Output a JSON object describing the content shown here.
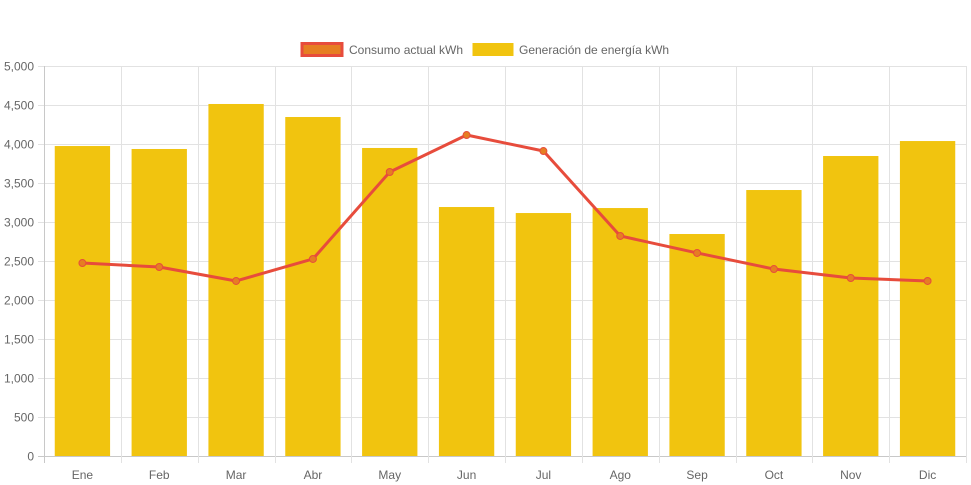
{
  "chart_data": {
    "type": "bar",
    "title": "",
    "xlabel": "",
    "ylabel": "",
    "categories": [
      "Ene",
      "Feb",
      "Mar",
      "Abr",
      "May",
      "Jun",
      "Jul",
      "Ago",
      "Sep",
      "Oct",
      "Nov",
      "Dic"
    ],
    "ylim": [
      0,
      5000
    ],
    "yticks": [
      0,
      500,
      1000,
      1500,
      2000,
      2500,
      3000,
      3500,
      4000,
      4500,
      5000
    ],
    "ytick_labels": [
      "0",
      "500",
      "1,000",
      "1,500",
      "2,000",
      "2,500",
      "3,000",
      "3,500",
      "4,000",
      "4,500",
      "5,000"
    ],
    "grid": true,
    "legend_position": "top-center",
    "series": [
      {
        "name": "Consumo actual kWh",
        "type": "line",
        "color": "#e74c3c",
        "point_color": "#e67e22",
        "values": [
          2474,
          2423,
          2244,
          2526,
          3641,
          4115,
          3910,
          2821,
          2603,
          2397,
          2282,
          2244
        ]
      },
      {
        "name": "Generación de energía kWh",
        "type": "bar",
        "color": "#f1c40f",
        "values": [
          3974,
          3936,
          4513,
          4346,
          3949,
          3192,
          3115,
          3179,
          2846,
          3410,
          3846,
          4038
        ]
      }
    ]
  },
  "legend": {
    "items": [
      {
        "label": "Consumo actual kWh",
        "fill": "#e67e22",
        "stroke": "#e74c3c"
      },
      {
        "label": "Generación de energía kWh",
        "fill": "#f1c40f",
        "stroke": "#f1c40f"
      }
    ]
  }
}
